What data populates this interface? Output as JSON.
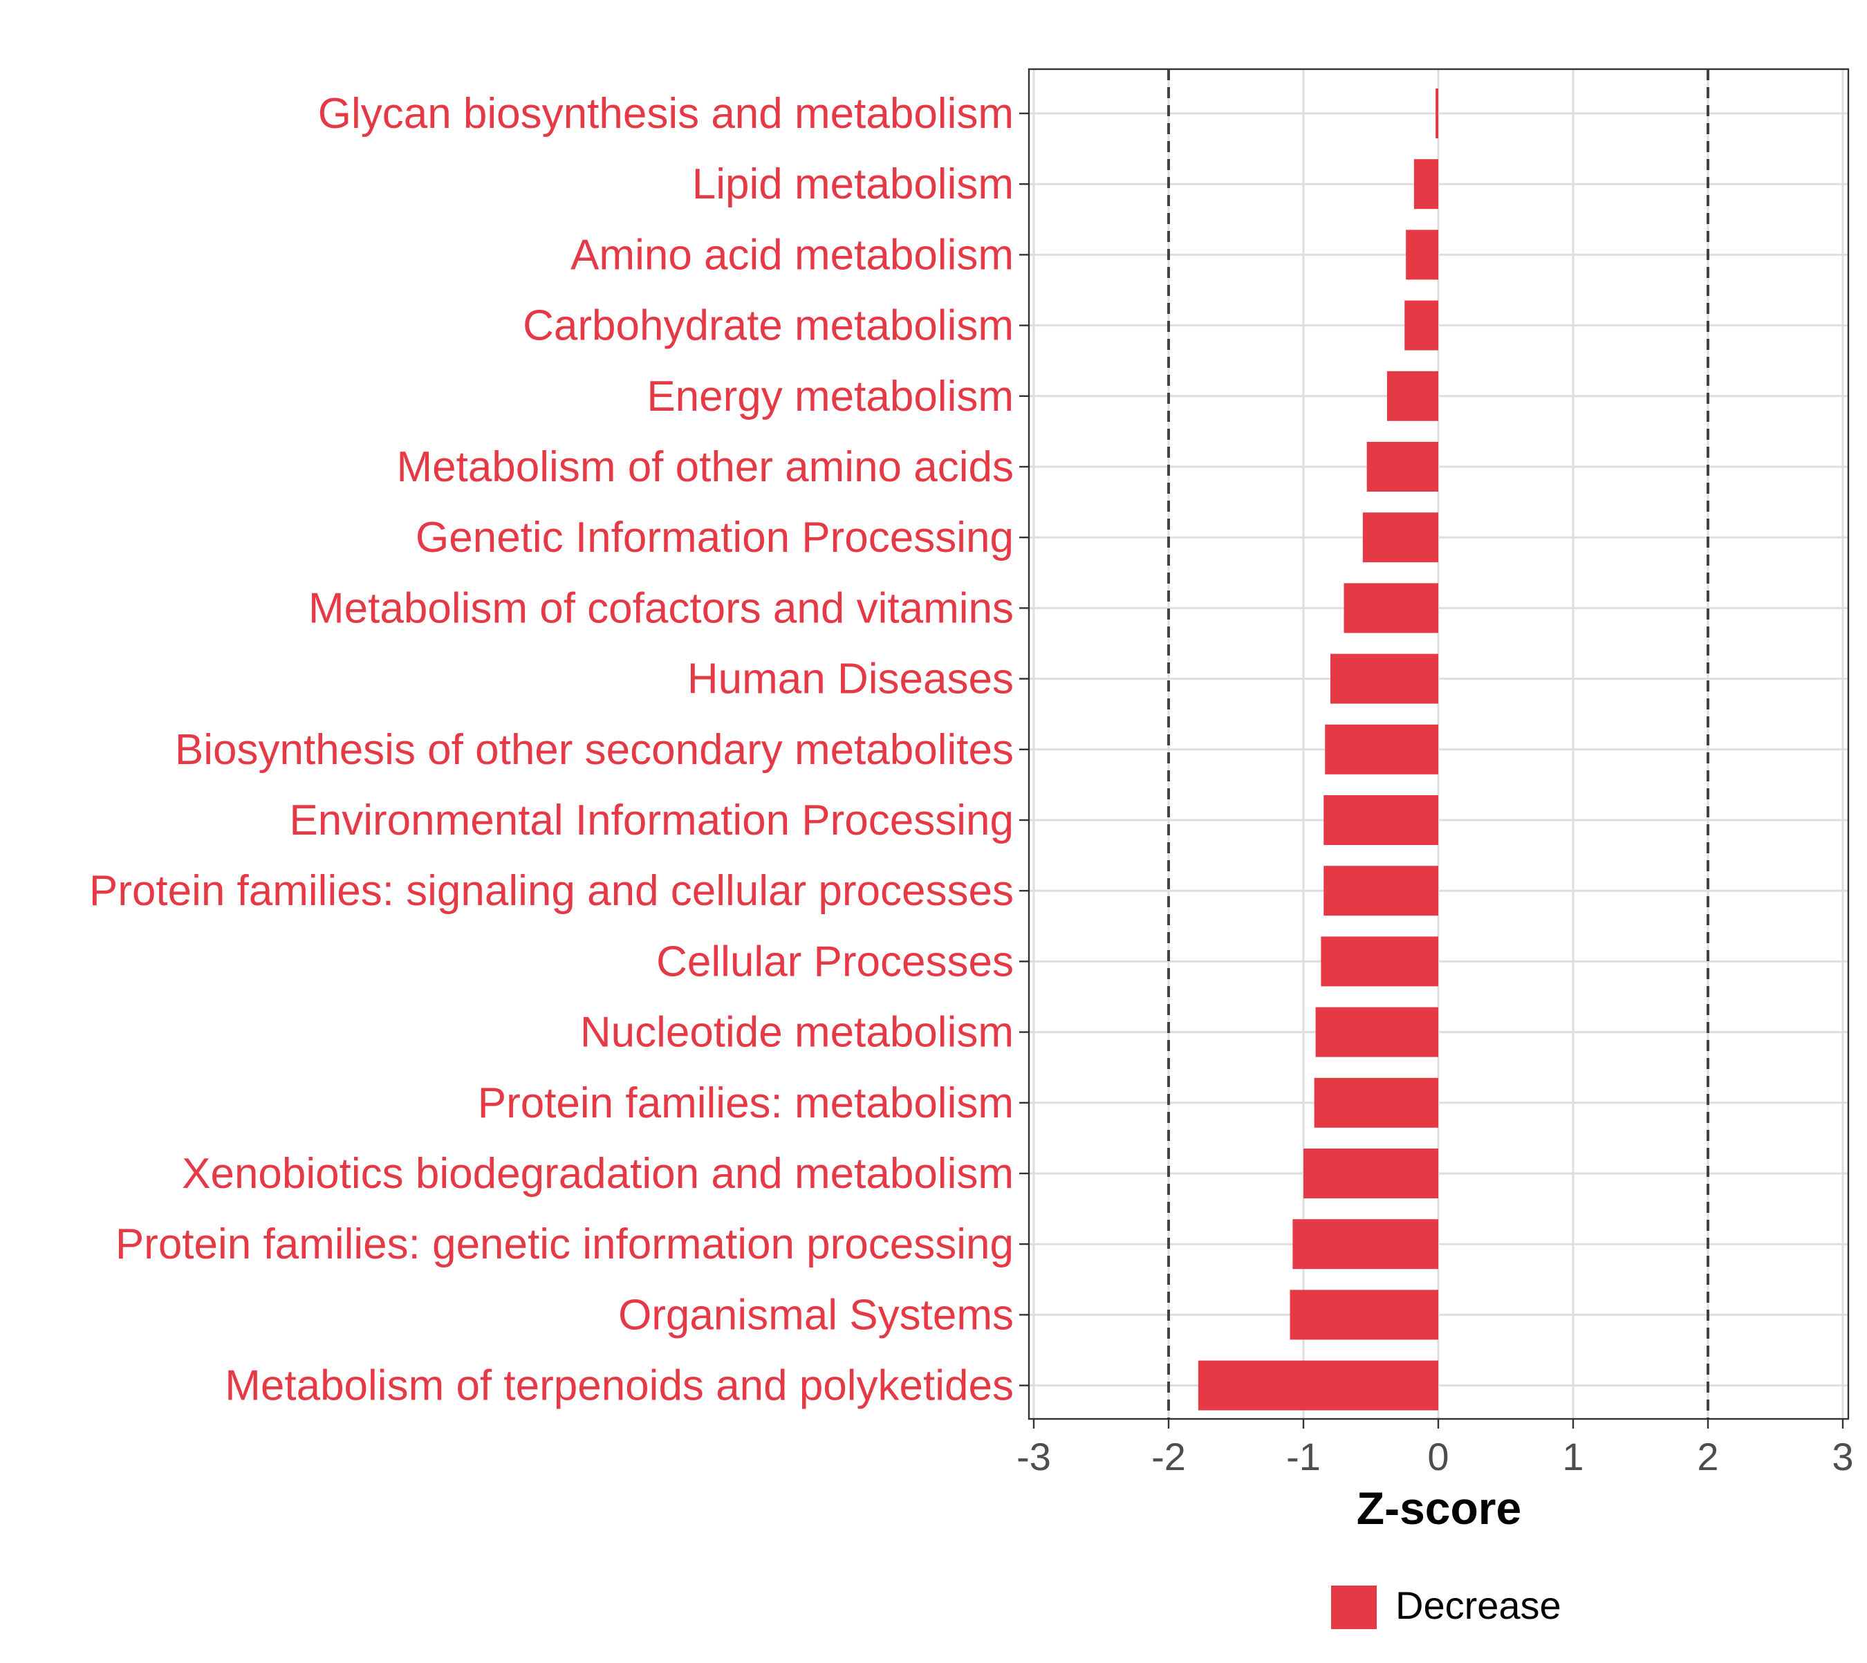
{
  "chart_data": {
    "type": "bar",
    "orientation": "horizontal",
    "title": "",
    "xlabel": "Z-score",
    "ylabel": "",
    "xlim": [
      -3,
      3
    ],
    "x_ticks": [
      "-3",
      "-2",
      "-1",
      "0",
      "1",
      "2",
      "3"
    ],
    "x_tick_values": [
      -3,
      -2,
      -1,
      0,
      1,
      2,
      3
    ],
    "reference_lines": [
      -2,
      2
    ],
    "grid": true,
    "legend": {
      "placement": "bottom",
      "entries": [
        "Decrease"
      ]
    },
    "colors": {
      "decrease": "#e63946",
      "label": "#e63946",
      "grid": "#dedede",
      "axis": "#333333",
      "tick_text": "#4d4d4d",
      "ref_line": "#444444"
    },
    "categories": [
      "Glycan biosynthesis and metabolism",
      "Lipid metabolism",
      "Amino acid metabolism",
      "Carbohydrate metabolism",
      "Energy metabolism",
      "Metabolism of other amino acids",
      "Genetic Information Processing",
      "Metabolism of cofactors and vitamins",
      "Human Diseases",
      "Biosynthesis of other secondary metabolites",
      "Environmental Information Processing",
      "Protein families: signaling and cellular processes",
      "Cellular Processes",
      "Nucleotide metabolism",
      "Protein families: metabolism",
      "Xenobiotics biodegradation and metabolism",
      "Protein families: genetic information processing",
      "Organismal Systems",
      "Metabolism of terpenoids and polyketides"
    ],
    "series": [
      {
        "name": "Decrease",
        "values": [
          -0.02,
          -0.18,
          -0.24,
          -0.25,
          -0.38,
          -0.53,
          -0.56,
          -0.7,
          -0.8,
          -0.84,
          -0.85,
          -0.85,
          -0.87,
          -0.91,
          -0.92,
          -1.0,
          -1.08,
          -1.1,
          -1.78
        ]
      }
    ]
  }
}
